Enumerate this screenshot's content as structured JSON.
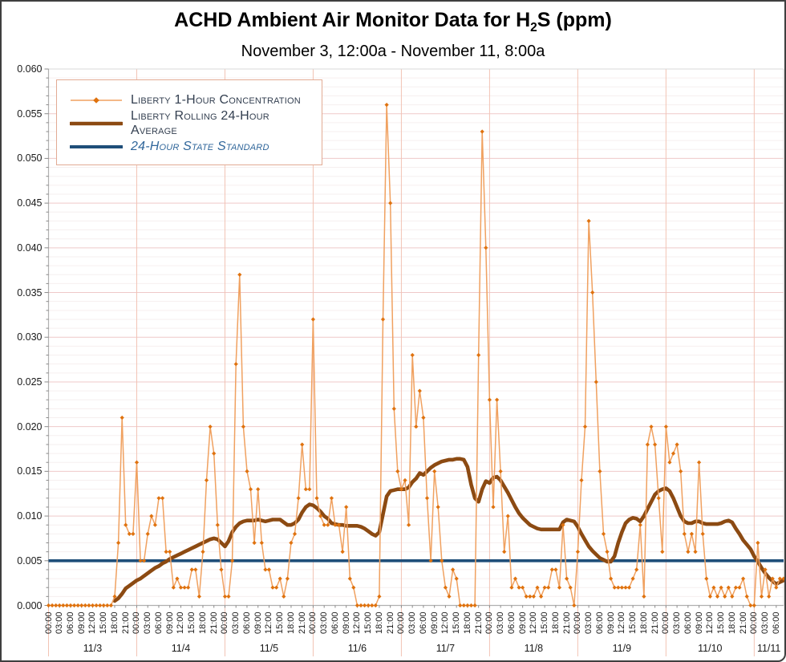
{
  "title": {
    "pre": "ACHD Ambient Air Monitor Data for H",
    "sub": "2",
    "post": "S (ppm)"
  },
  "subtitle": "November 3, 12:00a - November 11, 8:00a",
  "colors": {
    "hourly_line": "#f0a160",
    "hourly_marker": "#df720e",
    "rolling_line": "#8c4a12",
    "standard_line": "#1f4e79",
    "grid_major": "#efc9c9",
    "grid_minor": "#f6efef",
    "day_separator": "#f2c3b4",
    "axis": "#b0b0b0",
    "plot_border": "#d8d8d8",
    "legend_border": "#e2ab94",
    "legend_text": "#333f50",
    "legend_text_standard": "#31679b"
  },
  "chart_data": {
    "type": "line",
    "title": "ACHD Ambient Air Monitor Data for H2S (ppm)",
    "subtitle": "November 3, 12:00a - November 11, 8:00a",
    "xlabel": "",
    "ylabel": "",
    "ylim": [
      0,
      0.06
    ],
    "y_tick_step": 0.005,
    "y_minor_step": 0.001,
    "grid": true,
    "legend_position": "top-left",
    "hours_total": 200,
    "x_tick_interval_hours": 3,
    "y_tick_labels": [
      "0.000",
      "0.005",
      "0.010",
      "0.015",
      "0.020",
      "0.025",
      "0.030",
      "0.035",
      "0.040",
      "0.045",
      "0.050",
      "0.055",
      "0.060"
    ],
    "x_time_labels": [
      "00:00",
      "03:00",
      "06:00",
      "09:00",
      "12:00",
      "15:00",
      "18:00",
      "21:00",
      "00:00",
      "03:00",
      "06:00",
      "09:00",
      "12:00",
      "15:00",
      "18:00",
      "21:00",
      "00:00",
      "03:00",
      "06:00",
      "09:00",
      "12:00",
      "15:00",
      "18:00",
      "21:00",
      "00:00",
      "03:00",
      "06:00",
      "09:00",
      "12:00",
      "15:00",
      "18:00",
      "21:00",
      "00:00",
      "03:00",
      "06:00",
      "09:00",
      "12:00",
      "15:00",
      "18:00",
      "21:00",
      "00:00",
      "03:00",
      "06:00",
      "09:00",
      "12:00",
      "15:00",
      "18:00",
      "21:00",
      "00:00",
      "03:00",
      "06:00",
      "09:00",
      "12:00",
      "15:00",
      "18:00",
      "21:00",
      "00:00",
      "03:00",
      "06:00",
      "09:00",
      "12:00",
      "15:00",
      "18:00",
      "21:00",
      "00:00",
      "03:00",
      "06:00"
    ],
    "day_labels": [
      "11/3",
      "11/4",
      "11/5",
      "11/6",
      "11/7",
      "11/8",
      "11/9",
      "11/10",
      "11/11"
    ],
    "series": [
      {
        "name": "Liberty 1-Hour Concentration",
        "start_hour": 0,
        "values": [
          0.0,
          0.0,
          0.0,
          0.0,
          0.0,
          0.0,
          0.0,
          0.0,
          0.0,
          0.0,
          0.0,
          0.0,
          0.0,
          0.0,
          0.0,
          0.0,
          0.0,
          0.0,
          0.001,
          0.007,
          0.021,
          0.009,
          0.008,
          0.008,
          0.016,
          0.005,
          0.005,
          0.008,
          0.01,
          0.009,
          0.012,
          0.012,
          0.006,
          0.006,
          0.002,
          0.003,
          0.002,
          0.002,
          0.002,
          0.004,
          0.004,
          0.001,
          0.006,
          0.014,
          0.02,
          0.017,
          0.009,
          0.004,
          0.001,
          0.001,
          0.005,
          0.027,
          0.037,
          0.02,
          0.015,
          0.013,
          0.007,
          0.013,
          0.007,
          0.004,
          0.004,
          0.002,
          0.002,
          0.003,
          0.001,
          0.003,
          0.007,
          0.008,
          0.012,
          0.018,
          0.013,
          0.013,
          0.032,
          0.012,
          0.01,
          0.009,
          0.009,
          0.012,
          0.009,
          0.009,
          0.006,
          0.011,
          0.003,
          0.002,
          0.0,
          0.0,
          0.0,
          0.0,
          0.0,
          0.0,
          0.001,
          0.032,
          0.056,
          0.045,
          0.022,
          0.015,
          0.013,
          0.014,
          0.009,
          0.028,
          0.02,
          0.024,
          0.021,
          0.012,
          0.005,
          0.015,
          0.011,
          0.005,
          0.002,
          0.001,
          0.004,
          0.003,
          0.0,
          0.0,
          0.0,
          0.0,
          0.0,
          0.028,
          0.053,
          0.04,
          0.023,
          0.011,
          0.023,
          0.015,
          0.006,
          0.01,
          0.002,
          0.003,
          0.002,
          0.002,
          0.001,
          0.001,
          0.001,
          0.002,
          0.001,
          0.002,
          0.002,
          0.004,
          0.004,
          0.002,
          0.009,
          0.003,
          0.002,
          0.0,
          0.006,
          0.014,
          0.02,
          0.043,
          0.035,
          0.025,
          0.015,
          0.008,
          0.006,
          0.003,
          0.002,
          0.002,
          0.002,
          0.002,
          0.002,
          0.003,
          0.004,
          0.009,
          0.001,
          0.018,
          0.02,
          0.018,
          0.012,
          0.006,
          0.02,
          0.016,
          0.017,
          0.018,
          0.015,
          0.008,
          0.006,
          0.008,
          0.006,
          0.016,
          0.008,
          0.003,
          0.001,
          0.002,
          0.001,
          0.002,
          0.001,
          0.002,
          0.001,
          0.002,
          0.002,
          0.003,
          0.001,
          0.0,
          0.0,
          0.007,
          0.001,
          0.004,
          0.001,
          0.003,
          0.002,
          0.003,
          0.003
        ]
      },
      {
        "name": "Liberty Rolling 24-Hour Average",
        "start_hour": 18,
        "values": [
          0.0005,
          0.0008,
          0.0013,
          0.0019,
          0.0022,
          0.0025,
          0.0028,
          0.003,
          0.0033,
          0.0036,
          0.0039,
          0.0042,
          0.0044,
          0.0047,
          0.0049,
          0.0052,
          0.0054,
          0.0056,
          0.0058,
          0.006,
          0.0062,
          0.0064,
          0.0066,
          0.0068,
          0.007,
          0.0072,
          0.0074,
          0.0075,
          0.0074,
          0.007,
          0.0066,
          0.0072,
          0.0082,
          0.0088,
          0.0092,
          0.0094,
          0.0095,
          0.0095,
          0.0095,
          0.0096,
          0.0095,
          0.0094,
          0.0095,
          0.0096,
          0.0096,
          0.0096,
          0.0093,
          0.009,
          0.009,
          0.0092,
          0.0096,
          0.0104,
          0.011,
          0.0113,
          0.0112,
          0.0109,
          0.0105,
          0.01,
          0.0097,
          0.0092,
          0.0091,
          0.009,
          0.009,
          0.0089,
          0.0089,
          0.0089,
          0.0089,
          0.0088,
          0.0086,
          0.0083,
          0.008,
          0.0078,
          0.0082,
          0.0102,
          0.0122,
          0.0128,
          0.0129,
          0.013,
          0.013,
          0.013,
          0.0132,
          0.0138,
          0.0142,
          0.0148,
          0.0146,
          0.015,
          0.0154,
          0.0157,
          0.0159,
          0.0161,
          0.0162,
          0.0163,
          0.0163,
          0.0164,
          0.0164,
          0.0163,
          0.0155,
          0.0135,
          0.012,
          0.0116,
          0.013,
          0.0139,
          0.0137,
          0.0143,
          0.0144,
          0.014,
          0.0133,
          0.0126,
          0.0118,
          0.011,
          0.0103,
          0.0098,
          0.0094,
          0.009,
          0.0088,
          0.0086,
          0.0085,
          0.0085,
          0.0085,
          0.0085,
          0.0085,
          0.0085,
          0.0093,
          0.0096,
          0.0095,
          0.0094,
          0.0088,
          0.008,
          0.0073,
          0.0066,
          0.0061,
          0.0057,
          0.0053,
          0.0051,
          0.0049,
          0.0049,
          0.0055,
          0.007,
          0.0082,
          0.0092,
          0.0096,
          0.0098,
          0.0097,
          0.0094,
          0.01,
          0.0108,
          0.0116,
          0.0124,
          0.0128,
          0.013,
          0.0131,
          0.0128,
          0.012,
          0.011,
          0.01,
          0.0094,
          0.0092,
          0.0092,
          0.0094,
          0.0094,
          0.0092,
          0.0091,
          0.0091,
          0.0091,
          0.0091,
          0.0092,
          0.0094,
          0.0095,
          0.0093,
          0.0086,
          0.008,
          0.0073,
          0.0068,
          0.0063,
          0.0055,
          0.0049,
          0.0042,
          0.0036,
          0.0031,
          0.0027,
          0.0024,
          0.0026,
          0.0028
        ]
      },
      {
        "name": "24-Hour State Standard",
        "constant_value": 0.005
      }
    ]
  }
}
